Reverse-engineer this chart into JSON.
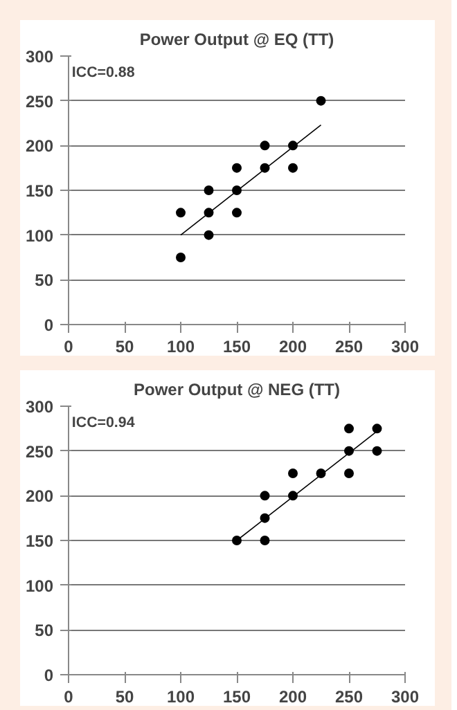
{
  "chart_data": [
    {
      "type": "scatter",
      "title": "Power Output @ EQ (TT)",
      "annotations": [
        "ICC=0.88"
      ],
      "xlim": [
        0,
        300
      ],
      "ylim": [
        0,
        300
      ],
      "xticks": [
        0,
        50,
        100,
        150,
        200,
        250,
        300
      ],
      "yticks": [
        0,
        50,
        100,
        150,
        200,
        250,
        300
      ],
      "grid": "y",
      "series": [
        {
          "marker": "circle",
          "color": "#000000",
          "x": [
            100,
            100,
            125,
            125,
            125,
            150,
            150,
            150,
            175,
            175,
            200,
            200,
            225
          ],
          "values": [
            125,
            75,
            150,
            125,
            100,
            175,
            150,
            125,
            200,
            175,
            200,
            175,
            250
          ]
        },
        {
          "type": "line",
          "color": "#000000",
          "x": [
            100,
            225
          ],
          "values": [
            100,
            223
          ]
        }
      ]
    },
    {
      "type": "scatter",
      "title": "Power Output @ NEG (TT)",
      "annotations": [
        "ICC=0.94"
      ],
      "xlim": [
        0,
        300
      ],
      "ylim": [
        0,
        300
      ],
      "xticks": [
        0,
        50,
        100,
        150,
        200,
        250,
        300
      ],
      "yticks": [
        0,
        50,
        100,
        150,
        200,
        250,
        300
      ],
      "grid": "y",
      "series": [
        {
          "marker": "circle",
          "color": "#000000",
          "x": [
            150,
            175,
            175,
            175,
            200,
            200,
            225,
            250,
            250,
            250,
            275,
            275
          ],
          "values": [
            150,
            200,
            175,
            150,
            225,
            200,
            225,
            275,
            250,
            225,
            275,
            250
          ]
        },
        {
          "type": "line",
          "color": "#000000",
          "x": [
            150,
            275
          ],
          "values": [
            150,
            272
          ]
        }
      ]
    }
  ]
}
